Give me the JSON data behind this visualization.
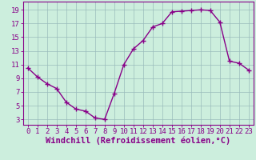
{
  "x": [
    0,
    1,
    2,
    3,
    4,
    5,
    6,
    7,
    8,
    9,
    10,
    11,
    12,
    13,
    14,
    15,
    16,
    17,
    18,
    19,
    20,
    21,
    22,
    23
  ],
  "y": [
    10.5,
    9.2,
    8.2,
    7.5,
    5.5,
    4.5,
    4.2,
    3.2,
    3.0,
    6.8,
    11.0,
    13.3,
    14.5,
    16.5,
    17.0,
    18.7,
    18.8,
    18.9,
    19.0,
    18.9,
    17.2,
    11.5,
    11.2,
    10.2
  ],
  "line_color": "#880088",
  "marker": "+",
  "markersize": 5,
  "linewidth": 1.0,
  "background_color": "#cceedd",
  "grid_color": "#99bbbb",
  "xlabel": "Windchill (Refroidissement éolien,°C)",
  "xlabel_color": "#880088",
  "xlabel_fontsize": 7.5,
  "ylabel_ticks": [
    3,
    5,
    7,
    9,
    11,
    13,
    15,
    17,
    19
  ],
  "ylim": [
    2.2,
    20.2
  ],
  "xlim": [
    -0.5,
    23.5
  ],
  "tick_color": "#880088",
  "tick_fontsize": 6.5,
  "tick_font": "monospace"
}
